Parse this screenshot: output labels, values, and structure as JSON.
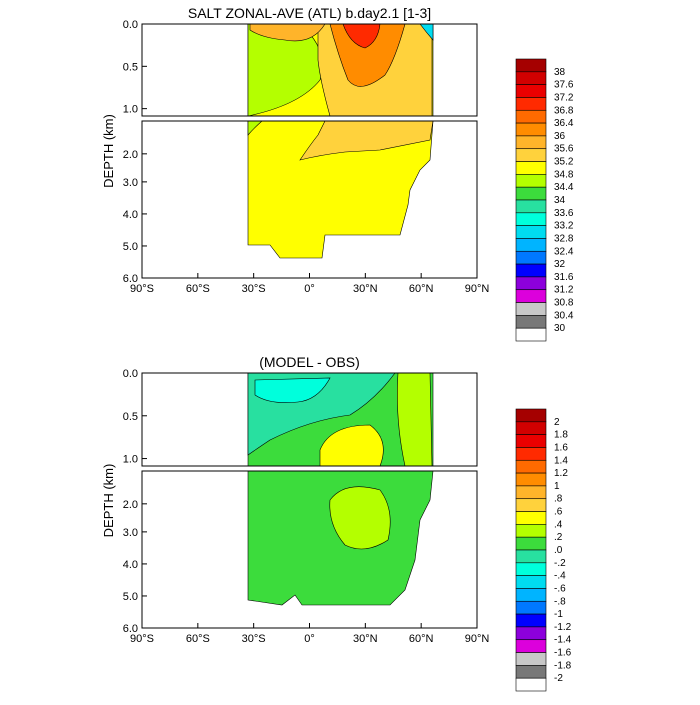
{
  "chart_data": [
    {
      "type": "heatmap",
      "title": "SALT ZONAL-AVE (ATL) b.day2.1 [1-3]",
      "ylabel": "DEPTH (km)",
      "x_ticks": [
        "90°S",
        "60°S",
        "30°S",
        "0°",
        "30°N",
        "60°N",
        "90°N"
      ],
      "xlim": [
        -90,
        90
      ],
      "y_ticks_upper": [
        "0.0",
        "0.5",
        "1.0"
      ],
      "y_ticks_lower": [
        "2.0",
        "3.0",
        "4.0",
        "5.0",
        "6.0"
      ],
      "ylim": [
        0,
        6
      ],
      "colorbar_labels": [
        "38",
        "37.6",
        "37.2",
        "36.8",
        "36.4",
        "36",
        "35.6",
        "35.2",
        "34.8",
        "34.4",
        "34",
        "33.6",
        "33.2",
        "32.8",
        "32.4",
        "32",
        "31.6",
        "31.2",
        "30.8",
        "30.4",
        "30"
      ],
      "colorbar_colors": [
        "#a50000",
        "#d20000",
        "#ea0000",
        "#ff2a00",
        "#ff6a00",
        "#ff8c00",
        "#ffb42a",
        "#ffd23c",
        "#ffff00",
        "#b4ff00",
        "#3cdc3c",
        "#28e0a0",
        "#00ffdc",
        "#00dcf0",
        "#00b4ff",
        "#0078ff",
        "#0000ff",
        "#8c00dc",
        "#dc00dc",
        "#c8c8c8",
        "#787878",
        "#ffffff"
      ],
      "regions": [
        {
          "name": "deep-fill",
          "value": "35.0",
          "color": "#ffff00"
        },
        {
          "name": "upper-background",
          "value": "35.0",
          "color": "#ffff00"
        },
        {
          "name": "south-fresh",
          "value": "34.6",
          "color": "#b4ff00"
        },
        {
          "name": "saline-tongue",
          "value": "35.4",
          "color": "#ffd23c"
        },
        {
          "name": "subtropical-max",
          "value": "36.4",
          "color": "#ff8c00"
        },
        {
          "name": "surface-south-max",
          "value": "36.0",
          "color": "#ffb42a"
        },
        {
          "name": "north-core",
          "value": "37.0",
          "color": "#ff2a00"
        },
        {
          "name": "arctic-fresh",
          "value": "33.0",
          "color": "#00dcf0"
        }
      ]
    },
    {
      "type": "heatmap",
      "title": "(MODEL - OBS)",
      "ylabel": "DEPTH (km)",
      "x_ticks": [
        "90°S",
        "60°S",
        "30°S",
        "0°",
        "30°N",
        "60°N",
        "90°N"
      ],
      "xlim": [
        -90,
        90
      ],
      "y_ticks_upper": [
        "0.0",
        "0.5",
        "1.0"
      ],
      "y_ticks_lower": [
        "2.0",
        "3.0",
        "4.0",
        "5.0",
        "6.0"
      ],
      "ylim": [
        0,
        6
      ],
      "colorbar_labels": [
        "2",
        "1.8",
        "1.6",
        "1.4",
        "1.2",
        "1",
        ".8",
        ".6",
        ".4",
        ".2",
        ".0",
        "-.2",
        "-.4",
        "-.6",
        "-.8",
        "-1",
        "-1.2",
        "-1.4",
        "-1.6",
        "-1.8",
        "-2"
      ],
      "colorbar_colors": [
        "#a50000",
        "#d20000",
        "#ea0000",
        "#ff2a00",
        "#ff6a00",
        "#ff8c00",
        "#ffb42a",
        "#ffd23c",
        "#ffff00",
        "#b4ff00",
        "#3cdc3c",
        "#28e0a0",
        "#00ffdc",
        "#00dcf0",
        "#00b4ff",
        "#0078ff",
        "#0000ff",
        "#8c00dc",
        "#dc00dc",
        "#c8c8c8",
        "#787878",
        "#ffffff"
      ],
      "regions": [
        {
          "name": "deep-fill",
          "value": "0.1",
          "color": "#3cdc3c"
        },
        {
          "name": "upper-background",
          "value": "0.1",
          "color": "#3cdc3c"
        },
        {
          "name": "fresh-bias",
          "value": "-0.3",
          "color": "#28e0a0"
        },
        {
          "name": "fresh-core",
          "value": "-0.5",
          "color": "#00ffdc"
        },
        {
          "name": "salty-lens",
          "value": "0.5",
          "color": "#ffff00"
        },
        {
          "name": "north-band",
          "value": "0.3",
          "color": "#b4ff00"
        },
        {
          "name": "deep-patch",
          "value": "0.3",
          "color": "#b4ff00"
        }
      ]
    }
  ]
}
